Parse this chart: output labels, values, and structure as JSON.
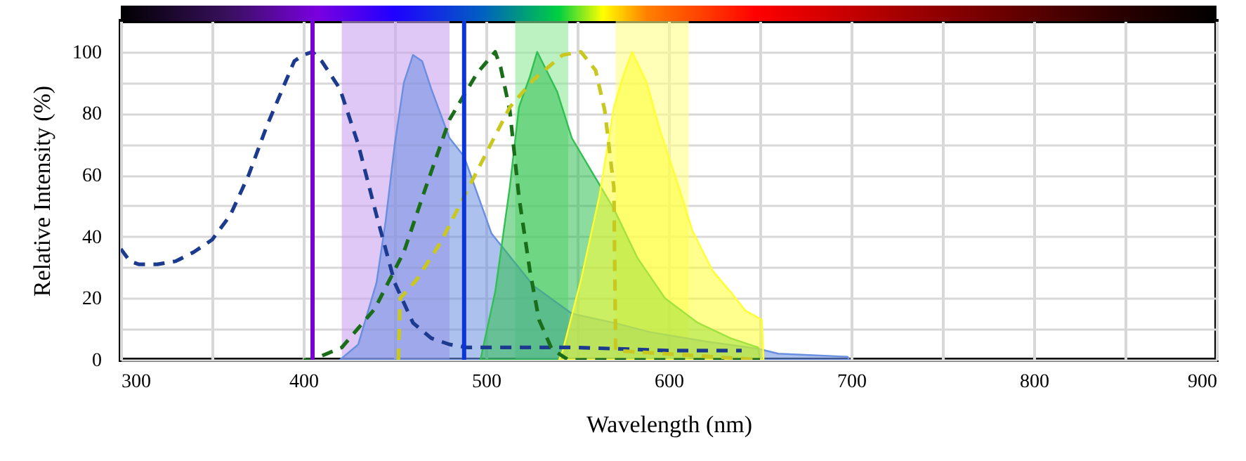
{
  "chart_data": {
    "type": "line",
    "xlabel": "Wavelength (nm)",
    "ylabel": "Relative Intensity (%)",
    "xlim": [
      300,
      900
    ],
    "ylim": [
      0,
      110
    ],
    "xticks": [
      300,
      {
        "value": 350,
        "label": null
      },
      400,
      {
        "value": 450,
        "label": null
      },
      500,
      {
        "value": 550,
        "label": null
      },
      600,
      {
        "value": 650,
        "label": null
      },
      700,
      {
        "value": 750,
        "label": null
      },
      800,
      {
        "value": 850,
        "label": null
      },
      900
    ],
    "yticks": [
      0,
      {
        "value": 10,
        "label": null
      },
      20,
      {
        "value": 30,
        "label": null
      },
      40,
      {
        "value": 50,
        "label": null
      },
      60,
      {
        "value": 70,
        "label": null
      },
      80,
      {
        "value": 90,
        "label": null
      },
      100
    ],
    "grid": true,
    "bands": [
      {
        "axis": "x",
        "from": 421,
        "to": 480,
        "color": "#c9a3ee"
      },
      {
        "axis": "x",
        "from": 516,
        "to": 545,
        "color": "#8fe89a"
      },
      {
        "axis": "x",
        "from": 571,
        "to": 611,
        "color": "#ffff88"
      }
    ],
    "ref_lines": [
      {
        "axis": "x",
        "value": 405,
        "color": "#7a00d0"
      },
      {
        "axis": "x",
        "value": 488,
        "color": "#0b35d6"
      }
    ],
    "series": [
      {
        "type": "area",
        "color": "#6a8ee0",
        "x": [
          420,
          430,
          440,
          445,
          450,
          455,
          460,
          465,
          470,
          480,
          488,
          503,
          526,
          547,
          570,
          590,
          620,
          649,
          660,
          698,
          699
        ],
        "values": [
          0,
          5,
          25,
          45,
          70,
          90,
          99,
          97,
          88,
          72,
          66,
          41,
          24,
          15,
          12,
          9,
          6,
          3.6,
          2,
          1,
          0
        ]
      },
      {
        "type": "area",
        "color": "#2fc050",
        "x": [
          497,
          498,
          505,
          513,
          518,
          524,
          528,
          539,
          547,
          557,
          570,
          583,
          598,
          616,
          634,
          649,
          650
        ],
        "values": [
          0,
          3,
          22,
          56,
          82,
          92,
          100,
          87,
          72,
          62,
          49,
          33,
          20,
          12,
          7,
          4,
          0
        ]
      },
      {
        "type": "area",
        "color": "#ffff30",
        "x": [
          540,
          542,
          552,
          562,
          570,
          575,
          580,
          588,
          595,
          605,
          613,
          624,
          634,
          642,
          651,
          652
        ],
        "values": [
          0,
          3,
          26,
          53,
          82,
          92,
          100,
          90,
          75,
          57,
          42,
          29,
          22,
          16,
          13,
          0
        ]
      },
      {
        "line_style": "dashed",
        "color": "#1c3a8e",
        "x": [
          300,
          305,
          310,
          320,
          330,
          340,
          350,
          360,
          370,
          380,
          390,
          395,
          400,
          405,
          410,
          420,
          430,
          440,
          450,
          460,
          470,
          480,
          490,
          500,
          550,
          600,
          640
        ],
        "values": [
          36,
          32,
          31,
          31,
          32,
          35,
          39,
          47,
          60,
          76,
          90,
          97,
          99,
          100,
          97,
          88,
          70,
          47,
          25,
          12,
          7,
          5,
          4,
          4,
          4,
          3,
          3
        ]
      },
      {
        "line_style": "dashed",
        "color": "#1a6e1a",
        "x": [
          400,
          405,
          421,
          439,
          455,
          467,
          480,
          495,
          505,
          508,
          513,
          518,
          524,
          529,
          536,
          545,
          650
        ],
        "values": [
          0,
          0,
          4,
          16.5,
          35,
          56,
          78,
          93,
          100,
          95,
          81,
          53,
          29,
          13,
          3.5,
          0,
          0
        ]
      },
      {
        "line_style": "dashed",
        "color": "#c8c820",
        "x": [
          452,
          453,
          462,
          475,
          488,
          500,
          513,
          526,
          542,
          552,
          560,
          565,
          570,
          571,
          650
        ],
        "values": [
          0,
          20,
          26,
          38,
          53,
          67,
          82,
          91,
          99,
          100,
          94,
          81,
          56,
          3,
          0
        ]
      }
    ]
  }
}
